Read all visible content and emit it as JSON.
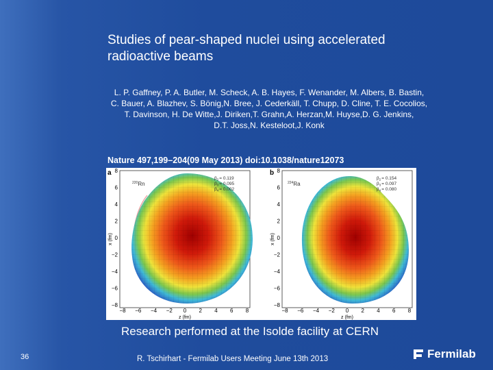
{
  "slide": {
    "title": "Studies of pear-shaped nuclei using accelerated radioactive beams",
    "authors": [
      "L. P. Gaffney, P. A. Butler, M. Scheck, A. B. Hayes, F. Wenander, M. Albers, B. Bastin,",
      "C. Bauer, A. Blazhev, S. Bönig,N. Bree, J. Cederkäll, T. Chupp, D. Cline, T. E. Cocolios,",
      "T. Davinson, H. De Witte,J. Diriken,T. Grahn,A. Herzan,M. Huyse,D. G. Jenkins,",
      "D.T. Joss,N. Kesteloot,J. Konk"
    ],
    "citation": "Nature 497,199–204(09 May 2013)  doi:10.1038/nature12073",
    "figure": {
      "axes": {
        "x_label": "z (fm)",
        "y_label": "x (fm)",
        "x_ticks": [
          "−8",
          "−6",
          "−4",
          "−2",
          "0",
          "2",
          "4",
          "6",
          "8"
        ],
        "y_ticks": [
          "8",
          "6",
          "4",
          "2",
          "0",
          "−2",
          "−4",
          "−6",
          "−8"
        ]
      },
      "panels": [
        {
          "label": "a",
          "mass": "220",
          "element": "Rn",
          "betas": [
            {
              "symbol": "β",
              "subscript": "2",
              "value": "= 0.119"
            },
            {
              "symbol": "β",
              "subscript": "3",
              "value": "= 0.095"
            },
            {
              "symbol": "β",
              "subscript": "4",
              "value": "= 0.002"
            }
          ]
        },
        {
          "label": "b",
          "mass": "224",
          "element": "Ra",
          "betas": [
            {
              "symbol": "β",
              "subscript": "2",
              "value": "= 0.154"
            },
            {
              "symbol": "β",
              "subscript": "3",
              "value": "= 0.097"
            },
            {
              "symbol": "β",
              "subscript": "4",
              "value": "= 0.080"
            }
          ]
        }
      ]
    },
    "caption": "Research performed at the Isolde facility at CERN",
    "footer": {
      "page_number": "36",
      "presenter": "R. Tschirhart - Fermilab Users Meeting June 13th 2013",
      "logo": "Fermilab"
    }
  }
}
